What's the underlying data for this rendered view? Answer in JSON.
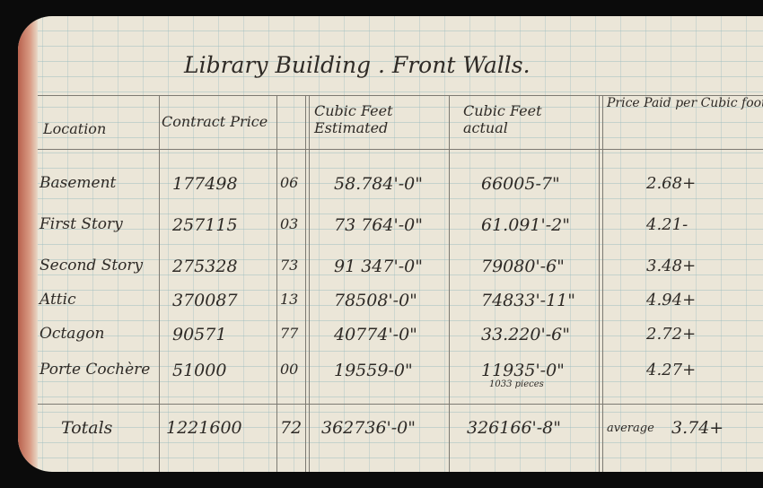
{
  "title": "Library Building . Front Walls.",
  "headers": {
    "location": "Location",
    "contract_price": "Contract Price",
    "cubic_estimated": "Cubic Feet Estimated",
    "cubic_actual": "Cubic Feet actual",
    "price_per_foot": "Price Paid per Cubic foot"
  },
  "rows": [
    {
      "location": "Basement",
      "price": "177498",
      "cents": "06",
      "estimated": "58.784'-0\"",
      "actual": "66005-7\"",
      "per_foot": "2.68+"
    },
    {
      "location": "First Story",
      "price": "257115",
      "cents": "03",
      "estimated": "73 764'-0\"",
      "actual": "61.091'-2\"",
      "per_foot": "4.21-"
    },
    {
      "location": "Second Story",
      "price": "275328",
      "cents": "73",
      "estimated": "91 347'-0\"",
      "actual": "79080'-6\"",
      "per_foot": "3.48+"
    },
    {
      "location": "Attic",
      "price": "370087",
      "cents": "13",
      "estimated": "78508'-0\"",
      "actual": "74833'-11\"",
      "per_foot": "4.94+"
    },
    {
      "location": "Octagon",
      "price": "90571",
      "cents": "77",
      "estimated": "40774'-0\"",
      "actual": "33.220'-6\"",
      "per_foot": "2.72+"
    },
    {
      "location": "Porte Cochère",
      "price": "51000",
      "cents": "00",
      "estimated": "19559-0\"",
      "actual": "11935'-0\"",
      "per_foot": "4.27+"
    }
  ],
  "note_pieces": "1033 pieces",
  "totals": {
    "label": "Totals",
    "price": "1221600",
    "cents": "72",
    "estimated": "362736'-0\"",
    "actual": "326166'-8\"",
    "per_foot_prefix": "average",
    "per_foot": "3.74+"
  }
}
